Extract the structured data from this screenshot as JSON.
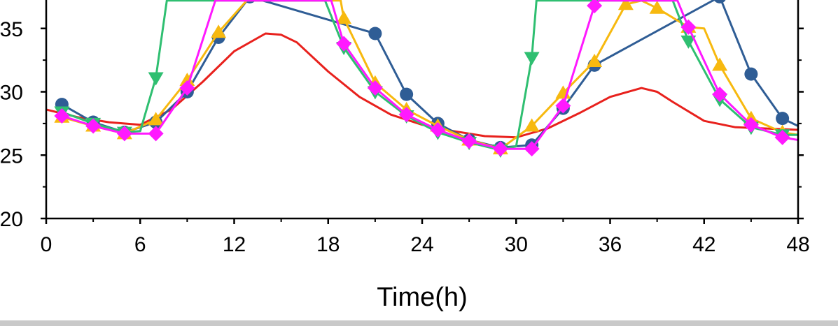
{
  "chart_data": {
    "type": "line",
    "title": "",
    "xlabel": "Time(h)",
    "ylabel": "",
    "xlim": [
      0,
      48
    ],
    "ylim": [
      20,
      37
    ],
    "x_ticks": [
      0,
      6,
      12,
      18,
      24,
      30,
      36,
      42,
      48
    ],
    "y_ticks": [
      20,
      25,
      30,
      35
    ],
    "grid": false,
    "series": [
      {
        "marker": "none",
        "color": "#e8211d",
        "x": [
          0,
          2,
          4,
          6,
          8,
          10,
          12,
          14,
          15,
          16,
          18,
          20,
          22,
          24,
          26,
          28,
          30,
          32,
          34,
          36,
          38,
          39,
          40,
          42,
          44,
          46,
          48
        ],
        "values": [
          28.6,
          28.0,
          27.6,
          27.4,
          28.6,
          30.8,
          33.2,
          34.6,
          34.5,
          33.9,
          31.6,
          29.6,
          28.2,
          27.4,
          26.9,
          26.5,
          26.4,
          27.1,
          28.3,
          29.6,
          30.3,
          30.0,
          29.2,
          27.7,
          27.2,
          27.1,
          27.0
        ]
      },
      {
        "marker": "circle",
        "color": "#2f5d95",
        "x": [
          1,
          3,
          5,
          7,
          9,
          11,
          13,
          21,
          23,
          25,
          27,
          29,
          31,
          33,
          35,
          43,
          45,
          47,
          48
        ],
        "values": [
          29.0,
          27.6,
          26.8,
          27.6,
          30.0,
          34.3,
          37.5,
          34.6,
          29.8,
          27.5,
          26.2,
          25.6,
          25.8,
          28.7,
          32.1,
          37.5,
          31.4,
          27.9,
          27.3
        ]
      },
      {
        "marker": "triangle-up",
        "color": "#f7b90f",
        "x": [
          1,
          3,
          5,
          7,
          9,
          11,
          12.8,
          18.8,
          19,
          21,
          23,
          25,
          27,
          29,
          31,
          33,
          35,
          37,
          38,
          39,
          41,
          42,
          43,
          45,
          47,
          48
        ],
        "values": [
          28.0,
          27.3,
          26.7,
          27.8,
          30.9,
          34.7,
          37.2,
          37.2,
          35.8,
          30.7,
          28.6,
          27.3,
          26.2,
          25.5,
          27.3,
          29.9,
          32.4,
          36.9,
          37.2,
          36.6,
          35.1,
          35.0,
          32.1,
          27.9,
          26.8,
          26.6
        ]
      },
      {
        "marker": "triangle-down",
        "color": "#2fbf71",
        "x": [
          1,
          3,
          5,
          6,
          7,
          7.7,
          17.8,
          19,
          21,
          23,
          25,
          27,
          29,
          30,
          31,
          31.3,
          40,
          41,
          43,
          45,
          47,
          48
        ],
        "values": [
          28.4,
          27.5,
          26.8,
          26.9,
          31.1,
          37.2,
          37.2,
          33.5,
          30.0,
          28.1,
          26.8,
          26.0,
          25.4,
          25.7,
          32.7,
          37.2,
          37.2,
          34.0,
          29.4,
          27.2,
          26.6,
          26.6
        ]
      },
      {
        "marker": "diamond",
        "color": "#ff19ff",
        "x": [
          1,
          3,
          5,
          7,
          9,
          10.8,
          18.2,
          19,
          21,
          23,
          25,
          27,
          29,
          31,
          33,
          35,
          35.3,
          40.3,
          41,
          43,
          45,
          47,
          48
        ],
        "values": [
          28.1,
          27.3,
          26.7,
          26.7,
          30.3,
          37.2,
          37.2,
          33.8,
          30.3,
          28.2,
          27.0,
          26.1,
          25.5,
          25.5,
          28.9,
          36.8,
          37.2,
          37.2,
          35.1,
          29.8,
          27.4,
          26.4,
          26.2
        ]
      }
    ]
  },
  "ui": {
    "footer_color": "#c9c9c9"
  }
}
